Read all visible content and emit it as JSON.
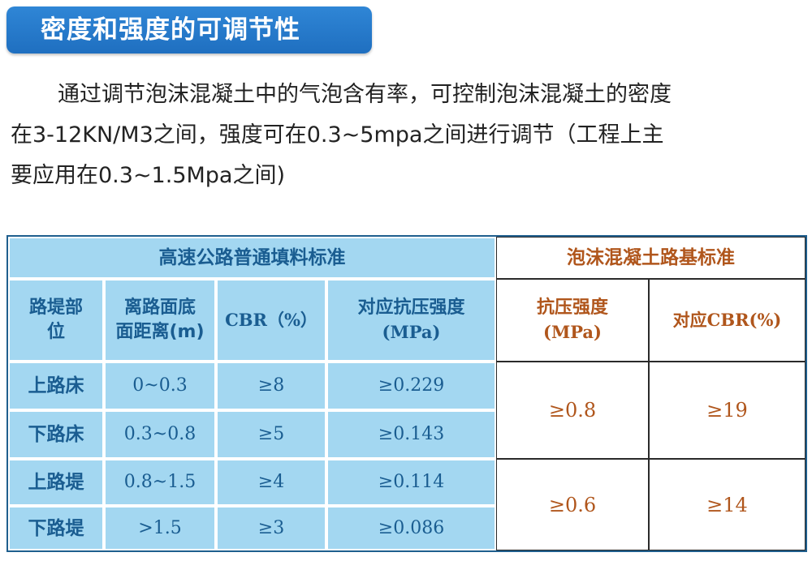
{
  "header": {
    "title": "密度和强度的可调节性"
  },
  "paragraph": {
    "line1": "通过调节泡沫混凝土中的气泡含有率，可控制泡沫混凝土的密度",
    "line2": "在3-12KN/M3之间，强度可在0.3~5mpa之间进行调节（工程上主",
    "line3": "要应用在0.3~1.5Mpa之间)"
  },
  "table": {
    "left_title": "高速公路普通填料标准",
    "right_title": "泡沫混凝土路基标准",
    "headers": {
      "position": [
        "路堤部",
        "位"
      ],
      "depth": [
        "离路面底",
        "面距离(m)"
      ],
      "cbr": "CBR（%）",
      "strength": [
        "对应抗压强度",
        "(MPa)"
      ],
      "foam_strength": [
        "抗压强度",
        "(MPa)"
      ],
      "foam_cbr": "对应CBR(%)"
    },
    "rows": [
      {
        "position": "上路床",
        "depth": "0~0.3",
        "cbr": "≥8",
        "strength": "≥0.229"
      },
      {
        "position": "下路床",
        "depth": "0.3~0.8",
        "cbr": "≥5",
        "strength": "≥0.143"
      },
      {
        "position": "上路堤",
        "depth": "0.8~1.5",
        "cbr": "≥4",
        "strength": "≥0.114"
      },
      {
        "position": "下路堤",
        "depth": ">1.5",
        "cbr": "≥3",
        "strength": "≥0.086"
      }
    ],
    "foam_groups": [
      {
        "strength": "≥0.8",
        "cbr": "≥19"
      },
      {
        "strength": "≥0.6",
        "cbr": "≥14"
      }
    ]
  }
}
